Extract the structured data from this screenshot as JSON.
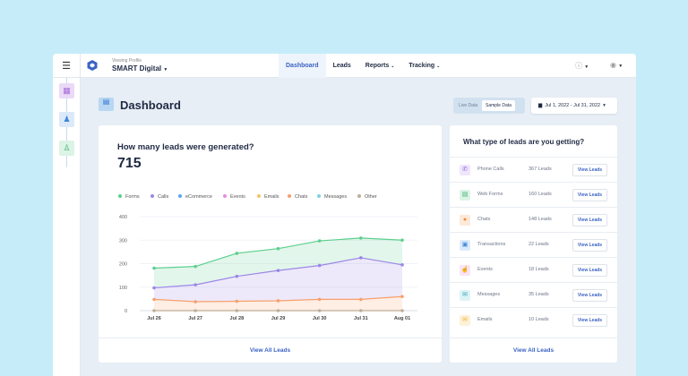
{
  "header": {
    "viewing_label": "Viewing Profile",
    "profile_name": "SMART Digital",
    "nav": [
      "Dashboard",
      "Leads",
      "Reports",
      "Tracking"
    ],
    "active_nav": "Dashboard"
  },
  "page": {
    "title": "Dashboard",
    "toggle": {
      "live": "Live Data",
      "sample": "Sample Data",
      "selected": "Sample Data"
    },
    "date_range": "Jul 1, 2022 - Jul 31, 2022"
  },
  "left_card": {
    "question": "How many leads were generated?",
    "total": "715",
    "footer": "View All Leads"
  },
  "chart_data": {
    "type": "area",
    "stacked": true,
    "categories": [
      "Jul 26",
      "Jul 27",
      "Jul 28",
      "Jul 29",
      "Jul 30",
      "Jul 31",
      "Aug 01"
    ],
    "ylim": [
      0,
      400
    ],
    "yticks": [
      0,
      100,
      200,
      300,
      400
    ],
    "grid": true,
    "legend_position": "top",
    "legend": [
      {
        "name": "Forms",
        "color": "#5ccf8e"
      },
      {
        "name": "Calls",
        "color": "#9b86e6"
      },
      {
        "name": "eCommerce",
        "color": "#5aa6ef"
      },
      {
        "name": "Events",
        "color": "#e98be0"
      },
      {
        "name": "Emails",
        "color": "#f7c16e"
      },
      {
        "name": "Chats",
        "color": "#f7a06b"
      },
      {
        "name": "Messages",
        "color": "#7fd3df"
      },
      {
        "name": "Other",
        "color": "#bfae98"
      }
    ],
    "series": [
      {
        "name": "Other",
        "color": "#bfae98",
        "values": [
          0,
          0,
          0,
          0,
          0,
          0,
          0
        ]
      },
      {
        "name": "Chats",
        "color": "#f7a06b",
        "values": [
          48,
          38,
          40,
          42,
          48,
          48,
          60
        ]
      },
      {
        "name": "Calls",
        "color": "#9b86e6",
        "values": [
          49,
          72,
          106,
          129,
          144,
          177,
          135
        ]
      },
      {
        "name": "Forms",
        "color": "#5ccf8e",
        "values": [
          84,
          78,
          98,
          93,
          105,
          84,
          105
        ]
      }
    ]
  },
  "right_card": {
    "question": "What type of leads are you getting?",
    "button_label": "View Leads",
    "footer": "View All Leads",
    "rows": [
      {
        "name": "Phone Calls",
        "count": "367 Leads",
        "icon": "phone-icon",
        "color": "#efe6fb",
        "glyph": "✆",
        "fg": "#8a5fe0"
      },
      {
        "name": "Web Forms",
        "count": "160 Leads",
        "icon": "form-icon",
        "color": "#ddf4e6",
        "glyph": "▤",
        "fg": "#3fb071"
      },
      {
        "name": "Chats",
        "count": "148 Leads",
        "icon": "chat-icon",
        "color": "#fde9d9",
        "glyph": "●",
        "fg": "#f08a3c"
      },
      {
        "name": "Transactions",
        "count": "22 Leads",
        "icon": "transaction-icon",
        "color": "#dcebfa",
        "glyph": "▣",
        "fg": "#3f86d8"
      },
      {
        "name": "Events",
        "count": "18 Leads",
        "icon": "event-icon",
        "color": "#fbe3f6",
        "glyph": "☝",
        "fg": "#d752c4"
      },
      {
        "name": "Messages",
        "count": "35 Leads",
        "icon": "message-icon",
        "color": "#ddf4f7",
        "glyph": "✉",
        "fg": "#2f9fb3"
      },
      {
        "name": "Emails",
        "count": "10 Leads",
        "icon": "email-icon",
        "color": "#fdf1d8",
        "glyph": "✉",
        "fg": "#f0b02f"
      }
    ]
  }
}
